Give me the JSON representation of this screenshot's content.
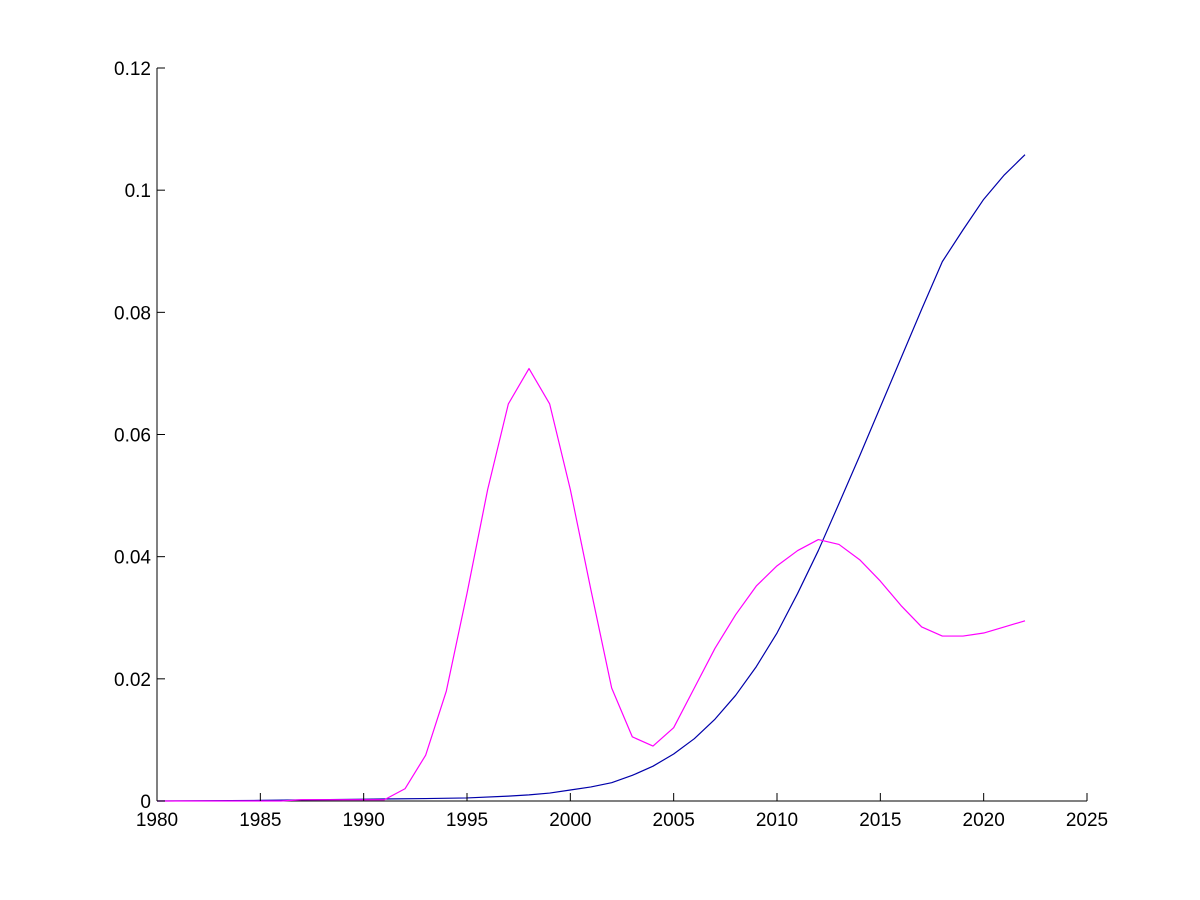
{
  "chart_data": {
    "type": "line",
    "title": "",
    "xlabel": "",
    "ylabel": "",
    "xlim": [
      1980,
      2025
    ],
    "ylim": [
      0,
      0.12
    ],
    "x_ticks": [
      1980,
      1985,
      1990,
      1995,
      2000,
      2005,
      2010,
      2015,
      2020,
      2025
    ],
    "y_ticks": [
      0,
      0.02,
      0.04,
      0.06,
      0.08,
      0.1,
      0.12
    ],
    "x_tick_labels": [
      "1980",
      "1985",
      "1990",
      "1995",
      "2000",
      "2005",
      "2010",
      "2015",
      "2020",
      "2025"
    ],
    "y_tick_labels": [
      "0",
      "0.02",
      "0.04",
      "0.06",
      "0.08",
      "0.1",
      "0.12"
    ],
    "grid": false,
    "legend": "none",
    "series": [
      {
        "color": "#0000aa",
        "points": [
          [
            1980,
            0.0
          ],
          [
            1985,
            0.0001
          ],
          [
            1990,
            0.0003
          ],
          [
            1993,
            0.0004
          ],
          [
            1995,
            0.0005
          ],
          [
            1997,
            0.0008
          ],
          [
            1998,
            0.001
          ],
          [
            1999,
            0.0013
          ],
          [
            2000,
            0.0018
          ],
          [
            2001,
            0.0023
          ],
          [
            2002,
            0.003
          ],
          [
            2003,
            0.0042
          ],
          [
            2004,
            0.0057
          ],
          [
            2005,
            0.0077
          ],
          [
            2006,
            0.0102
          ],
          [
            2007,
            0.0134
          ],
          [
            2008,
            0.0173
          ],
          [
            2009,
            0.022
          ],
          [
            2010,
            0.0275
          ],
          [
            2011,
            0.034
          ],
          [
            2012,
            0.041
          ],
          [
            2013,
            0.0487
          ],
          [
            2014,
            0.0565
          ],
          [
            2015,
            0.0645
          ],
          [
            2016,
            0.0725
          ],
          [
            2017,
            0.0805
          ],
          [
            2018,
            0.0883
          ],
          [
            2019,
            0.0935
          ],
          [
            2020,
            0.0985
          ],
          [
            2021,
            0.1025
          ],
          [
            2022,
            0.1058
          ]
        ]
      },
      {
        "color": "#ff00ff",
        "points": [
          [
            1980,
            0.0
          ],
          [
            1986,
            0.0
          ],
          [
            1987,
            0.0002
          ],
          [
            1990,
            0.0002
          ],
          [
            1991,
            0.0002
          ],
          [
            1992,
            0.002
          ],
          [
            1993,
            0.0075
          ],
          [
            1994,
            0.018
          ],
          [
            1995,
            0.034
          ],
          [
            1996,
            0.051
          ],
          [
            1997,
            0.065
          ],
          [
            1998,
            0.0708
          ],
          [
            1999,
            0.065
          ],
          [
            2000,
            0.051
          ],
          [
            2001,
            0.0345
          ],
          [
            2002,
            0.0185
          ],
          [
            2003,
            0.0105
          ],
          [
            2004,
            0.009
          ],
          [
            2005,
            0.012
          ],
          [
            2006,
            0.0185
          ],
          [
            2007,
            0.025
          ],
          [
            2008,
            0.0305
          ],
          [
            2009,
            0.0352
          ],
          [
            2010,
            0.0385
          ],
          [
            2011,
            0.041
          ],
          [
            2012,
            0.0428
          ],
          [
            2013,
            0.042
          ],
          [
            2014,
            0.0395
          ],
          [
            2015,
            0.036
          ],
          [
            2016,
            0.032
          ],
          [
            2017,
            0.0285
          ],
          [
            2018,
            0.027
          ],
          [
            2019,
            0.027
          ],
          [
            2020,
            0.0275
          ],
          [
            2021,
            0.0285
          ],
          [
            2022,
            0.0295
          ]
        ]
      }
    ]
  }
}
